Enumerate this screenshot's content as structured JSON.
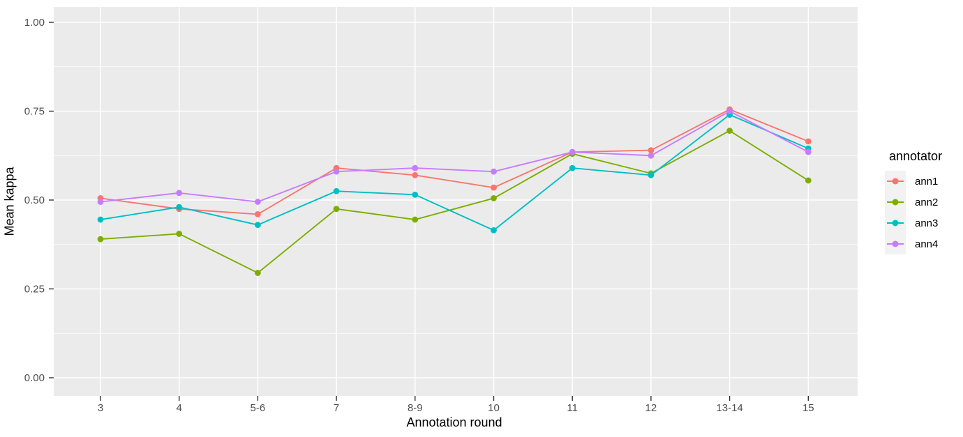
{
  "chart_data": {
    "type": "line",
    "title": "",
    "xlabel": "Annotation round",
    "ylabel": "Mean kappa",
    "categories": [
      "3",
      "4",
      "5-6",
      "7",
      "8-9",
      "10",
      "11",
      "12",
      "13-14",
      "15"
    ],
    "series": [
      {
        "name": "ann1",
        "color": "#F8766D",
        "values": [
          0.505,
          0.475,
          0.46,
          0.59,
          0.57,
          0.535,
          0.635,
          0.64,
          0.755,
          0.665
        ]
      },
      {
        "name": "ann2",
        "color": "#7CAE00",
        "values": [
          0.39,
          0.405,
          0.295,
          0.475,
          0.445,
          0.505,
          0.63,
          0.575,
          0.695,
          0.555
        ]
      },
      {
        "name": "ann3",
        "color": "#00BFC4",
        "values": [
          0.445,
          0.48,
          0.43,
          0.525,
          0.515,
          0.415,
          0.59,
          0.57,
          0.74,
          0.645
        ]
      },
      {
        "name": "ann4",
        "color": "#C77CFF",
        "values": [
          0.495,
          0.52,
          0.495,
          0.58,
          0.59,
          0.58,
          0.635,
          0.625,
          0.75,
          0.635
        ]
      }
    ],
    "ylim": [
      0,
      1
    ],
    "yticks": [
      0.0,
      0.25,
      0.5,
      0.75,
      1.0
    ],
    "ytick_labels": [
      "0.00",
      "0.25",
      "0.50",
      "0.75",
      "1.00"
    ],
    "minor_yticks": [
      0.125,
      0.375,
      0.625,
      0.875
    ],
    "grid": "on",
    "legend": {
      "title": "annotator",
      "position": "right"
    }
  },
  "style": {
    "panel_bg": "#EBEBEB",
    "grid_major": "#FFFFFF",
    "grid_minor": "#FFFFFF",
    "tick_mark_color": "#333333",
    "tick_label_color": "#4D4D4D",
    "axis_title_color": "#000000",
    "legend_key_bg": "#F2F2F2",
    "background": "#FFFFFF"
  }
}
